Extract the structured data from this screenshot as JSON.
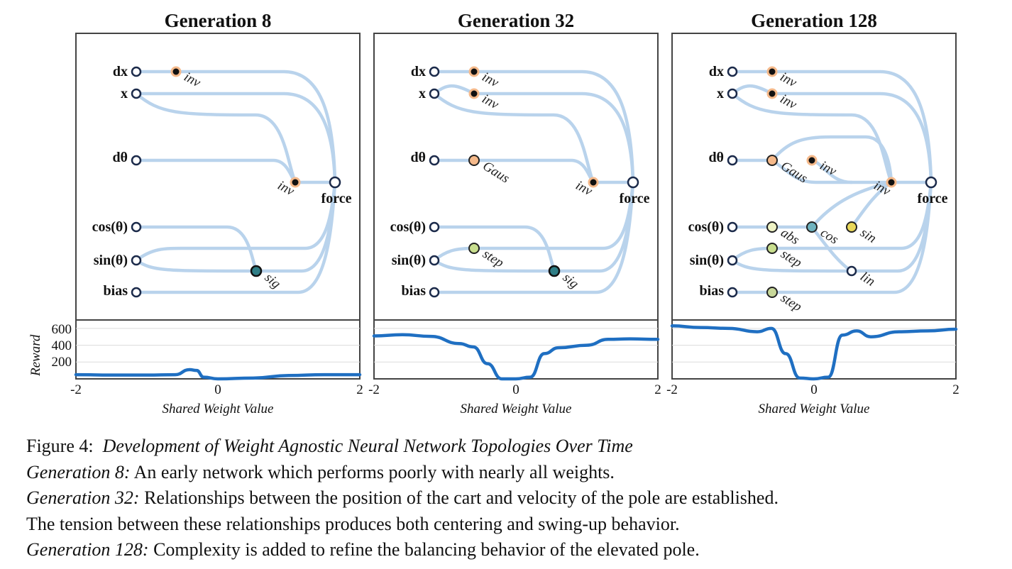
{
  "panels": [
    {
      "title": "Generation 8",
      "inputs": {
        "dx": "dx",
        "x": "x",
        "dtheta": "dθ",
        "cos": "cos(θ)",
        "sin": "sin(θ)",
        "bias": "bias"
      },
      "output": "force",
      "hidden": [
        {
          "label": "inν",
          "color": "#111111",
          "ring": "#f5b98a"
        },
        {
          "label": "inν",
          "color": "#111111",
          "ring": "#f5b98a"
        },
        {
          "label": "sig",
          "color": "#2f7e86",
          "ring": "#111111"
        }
      ]
    },
    {
      "title": "Generation 32",
      "inputs": {
        "dx": "dx",
        "x": "x",
        "dtheta": "dθ",
        "cos": "cos(θ)",
        "sin": "sin(θ)",
        "bias": "bias"
      },
      "output": "force",
      "hidden": [
        {
          "label": "inν"
        },
        {
          "label": "inν"
        },
        {
          "label": "Gaus"
        },
        {
          "label": "inν"
        },
        {
          "label": "step"
        },
        {
          "label": "sig"
        }
      ]
    },
    {
      "title": "Generation 128",
      "inputs": {
        "dx": "dx",
        "x": "x",
        "dtheta": "dθ",
        "cos": "cos(θ)",
        "sin": "sin(θ)",
        "bias": "bias"
      },
      "output": "force",
      "hidden": [
        {
          "label": "inν"
        },
        {
          "label": "inν"
        },
        {
          "label": "Gaus"
        },
        {
          "label": "inν"
        },
        {
          "label": "inν"
        },
        {
          "label": "abs"
        },
        {
          "label": "cos"
        },
        {
          "label": "sin"
        },
        {
          "label": "step"
        },
        {
          "label": "lin"
        },
        {
          "label": "step"
        }
      ]
    }
  ],
  "reward_axis": {
    "ylabel": "Reward",
    "yticks": [
      "600",
      "400",
      "200"
    ]
  },
  "x_axis": {
    "label": "Shared Weight Value",
    "ticks": [
      "-2",
      "0",
      "2"
    ]
  },
  "chart_data": [
    {
      "type": "line",
      "title": "Generation 8",
      "xlabel": "Shared Weight Value",
      "ylabel": "Reward",
      "xlim": [
        -2,
        2
      ],
      "ylim": [
        0,
        700
      ],
      "x": [
        -2,
        -1.5,
        -1,
        -0.6,
        -0.4,
        -0.3,
        -0.2,
        0,
        0.5,
        1,
        1.5,
        2
      ],
      "values": [
        50,
        45,
        45,
        50,
        110,
        100,
        20,
        0,
        10,
        40,
        50,
        50
      ]
    },
    {
      "type": "line",
      "title": "Generation 32",
      "xlabel": "Shared Weight Value",
      "ylabel": "Reward",
      "xlim": [
        -2,
        2
      ],
      "ylim": [
        0,
        700
      ],
      "x": [
        -2,
        -1.6,
        -1.2,
        -0.8,
        -0.6,
        -0.4,
        -0.2,
        0,
        0.2,
        0.4,
        0.6,
        1,
        1.3,
        1.6,
        2
      ],
      "values": [
        510,
        525,
        505,
        420,
        380,
        180,
        0,
        0,
        20,
        300,
        370,
        400,
        470,
        475,
        470
      ]
    },
    {
      "type": "line",
      "title": "Generation 128",
      "xlabel": "Shared Weight Value",
      "ylabel": "Reward",
      "xlim": [
        -2,
        2
      ],
      "ylim": [
        0,
        700
      ],
      "x": [
        -2,
        -1.6,
        -1.2,
        -0.8,
        -0.6,
        -0.4,
        -0.2,
        0,
        0.2,
        0.4,
        0.6,
        0.8,
        1.2,
        1.6,
        2
      ],
      "values": [
        630,
        610,
        600,
        560,
        600,
        300,
        10,
        0,
        20,
        520,
        570,
        500,
        560,
        570,
        590
      ]
    }
  ],
  "caption": {
    "fig_label": "Figure 4:",
    "fig_title": "Development of Weight Agnostic Neural Network Topologies Over Time",
    "g8_label": "Generation 8:",
    "g8_text": " An early network which performs poorly with nearly all weights.",
    "g32_label": "Generation 32:",
    "g32_text": " Relationships between the position of the cart and velocity of the pole are established.",
    "g32_text2": "The tension between these relationships produces both centering and swing-up behavior.",
    "g128_label": "Generation 128:",
    "g128_text": " Complexity is added to refine the balancing behavior of the elevated pole."
  }
}
